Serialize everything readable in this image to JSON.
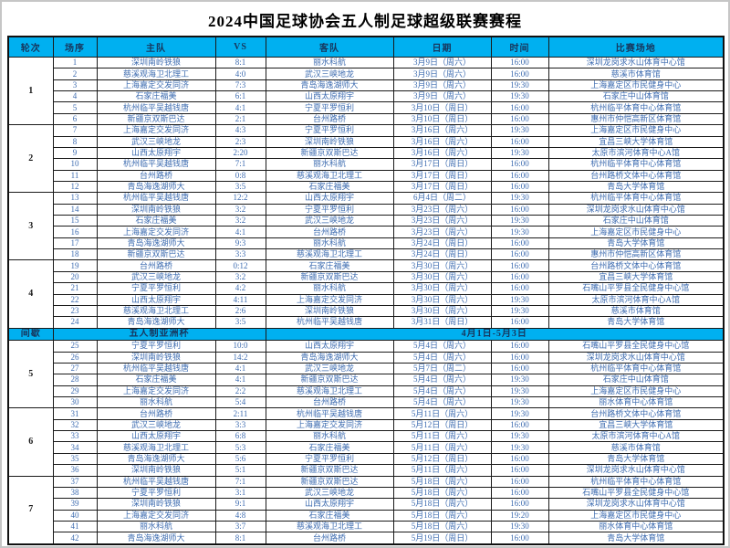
{
  "title": "2024中国足球协会五人制足球超级联赛赛程",
  "colors": {
    "header_bg": "#00b0f0",
    "header_text": "#17365d",
    "body_text": "#3e6cb0",
    "border": "#1a1a1a"
  },
  "table": {
    "headers": [
      "轮次",
      "场序",
      "主队",
      "VS",
      "客队",
      "日期",
      "时间",
      "比赛场地"
    ],
    "sections": [
      {
        "type": "round",
        "round": "1",
        "matches": [
          {
            "no": "1",
            "home": "深圳南岭铁狼",
            "score": "8:1",
            "away": "丽水科航",
            "date": "3月9日（周六）",
            "time": "16:00",
            "venue": "深圳龙岗求水山体育中心馆"
          },
          {
            "no": "2",
            "home": "慈溪观海卫北理工",
            "score": "4:0",
            "away": "武汉三峡地龙",
            "date": "3月9日（周六）",
            "time": "16:00",
            "venue": "慈溪市体育馆"
          },
          {
            "no": "3",
            "home": "上海嘉定交发同济",
            "score": "7:3",
            "away": "青岛海逸湖师大",
            "date": "3月9日（周六）",
            "time": "19:30",
            "venue": "上海嘉定区市民健身中心"
          },
          {
            "no": "4",
            "home": "石家庄福美",
            "score": "6:1",
            "away": "山西太原翔宇",
            "date": "3月9日（周六）",
            "time": "19:30",
            "venue": "石家庄中山体育馆"
          },
          {
            "no": "5",
            "home": "杭州临平吴越钱唐",
            "score": "4:1",
            "away": "宁夏平罗恒利",
            "date": "3月10日（周日）",
            "time": "16:00",
            "venue": "杭州临平体育中心体育馆"
          },
          {
            "no": "6",
            "home": "新疆京双斯巴达",
            "score": "2:1",
            "away": "台州路桥",
            "date": "3月10日（周日）",
            "time": "16:00",
            "venue": "惠州市仲恺高新区体育馆"
          }
        ]
      },
      {
        "type": "round",
        "round": "2",
        "matches": [
          {
            "no": "7",
            "home": "上海嘉定交发同济",
            "score": "4:3",
            "away": "宁夏平罗恒利",
            "date": "3月16日（周六）",
            "time": "19:30",
            "venue": "上海嘉定区市民健身中心"
          },
          {
            "no": "8",
            "home": "武汉三峡地龙",
            "score": "2:3",
            "away": "深圳南岭铁狼",
            "date": "3月16日（周六）",
            "time": "16:00",
            "venue": "宜昌三峡大学体育馆"
          },
          {
            "no": "9",
            "home": "山西太原翔宇",
            "score": "2:20",
            "away": "新疆京双斯巴达",
            "date": "3月16日（周六）",
            "time": "19:30",
            "venue": "太原市滨河体育中心A馆"
          },
          {
            "no": "10",
            "home": "杭州临平吴越钱唐",
            "score": "7:1",
            "away": "丽水科航",
            "date": "3月17日（周日）",
            "time": "16:00",
            "venue": "杭州临平体育中心体育馆"
          },
          {
            "no": "11",
            "home": "台州路桥",
            "score": "0:8",
            "away": "慈溪观海卫北理工",
            "date": "3月17日（周日）",
            "time": "16:00",
            "venue": "台州路桥文体中心体育馆"
          },
          {
            "no": "12",
            "home": "青岛海逸湖师大",
            "score": "3:5",
            "away": "石家庄福美",
            "date": "3月17日（周日）",
            "time": "16:00",
            "venue": "青岛大学体育馆"
          }
        ]
      },
      {
        "type": "round",
        "round": "3",
        "matches": [
          {
            "no": "13",
            "home": "杭州临平吴越钱唐",
            "score": "12:2",
            "away": "山西太原翔宇",
            "date": "6月4日（周二）",
            "time": "19:30",
            "venue": "杭州临平体育中心体育馆"
          },
          {
            "no": "14",
            "home": "深圳南岭铁狼",
            "score": "3:2",
            "away": "宁夏平罗恒利",
            "date": "3月23日（周六）",
            "time": "16:00",
            "venue": "深圳龙岗求水山体育中心馆"
          },
          {
            "no": "15",
            "home": "石家庄福美",
            "score": "3:2",
            "away": "武汉三峡地龙",
            "date": "3月23日（周六）",
            "time": "19:30",
            "venue": "石家庄中山体育馆"
          },
          {
            "no": "16",
            "home": "上海嘉定交发同济",
            "score": "4:1",
            "away": "台州路桥",
            "date": "3月23日（周六）",
            "time": "19:30",
            "venue": "上海嘉定区市民健身中心"
          },
          {
            "no": "17",
            "home": "青岛海逸湖师大",
            "score": "9:3",
            "away": "丽水科航",
            "date": "3月24日（周日）",
            "time": "16:00",
            "venue": "青岛大学体育馆"
          },
          {
            "no": "18",
            "home": "新疆京双斯巴达",
            "score": "3:3",
            "away": "慈溪观海卫北理工",
            "date": "3月24日（周日）",
            "time": "16:00",
            "venue": "惠州市仲恺高新区体育馆"
          }
        ]
      },
      {
        "type": "round",
        "round": "4",
        "matches": [
          {
            "no": "19",
            "home": "台州路桥",
            "score": "0:12",
            "away": "石家庄福美",
            "date": "3月30日（周六）",
            "time": "16:00",
            "venue": "台州路桥文体中心体育馆"
          },
          {
            "no": "20",
            "home": "武汉三峡地龙",
            "score": "3:2",
            "away": "新疆京双斯巴达",
            "date": "3月30日（周六）",
            "time": "16:00",
            "venue": "宜昌三峡大学体育馆"
          },
          {
            "no": "21",
            "home": "宁夏平罗恒利",
            "score": "4:2",
            "away": "丽水科航",
            "date": "3月30日（周六）",
            "time": "16:00",
            "venue": "石嘴山平罗县全民健身中心馆"
          },
          {
            "no": "22",
            "home": "山西太原翔宇",
            "score": "4:11",
            "away": "上海嘉定交发同济",
            "date": "3月30日（周六）",
            "time": "19:30",
            "venue": "太原市滨河体育中心A馆"
          },
          {
            "no": "23",
            "home": "慈溪观海卫北理工",
            "score": "2:6",
            "away": "深圳南岭铁狼",
            "date": "3月30日（周六）",
            "time": "19:30",
            "venue": "慈溪市体育馆"
          },
          {
            "no": "24",
            "home": "青岛海逸湖师大",
            "score": "3:5",
            "away": "杭州临平吴越钱唐",
            "date": "3月31日（周日）",
            "time": "16:00",
            "venue": "青岛大学体育馆"
          }
        ]
      },
      {
        "type": "break",
        "label": "间歇",
        "event": "五人制亚洲杯",
        "dates": "4月1日-5月3日"
      },
      {
        "type": "round",
        "round": "5",
        "matches": [
          {
            "no": "25",
            "home": "宁夏平罗恒利",
            "score": "10:0",
            "away": "山西太原翔宇",
            "date": "5月4日（周六）",
            "time": "16:00",
            "venue": "石嘴山平罗县全民健身中心馆"
          },
          {
            "no": "26",
            "home": "深圳南岭铁狼",
            "score": "14:2",
            "away": "青岛海逸湖师大",
            "date": "5月4日（周六）",
            "time": "16:00",
            "venue": "深圳龙岗求水山体育中心馆"
          },
          {
            "no": "27",
            "home": "杭州临平吴越钱唐",
            "score": "4:1",
            "away": "武汉三峡地龙",
            "date": "5月7日（周二）",
            "time": "16:00",
            "venue": "杭州临平体育中心体育馆"
          },
          {
            "no": "28",
            "home": "石家庄福美",
            "score": "4:1",
            "away": "新疆京双斯巴达",
            "date": "5月4日（周六）",
            "time": "19:30",
            "venue": "石家庄中山体育馆"
          },
          {
            "no": "29",
            "home": "上海嘉定交发同济",
            "score": "2:2",
            "away": "慈溪观海卫北理工",
            "date": "5月4日（周六）",
            "time": "19:30",
            "venue": "上海嘉定区市民健身中心"
          },
          {
            "no": "30",
            "home": "丽水科航",
            "score": "5:4",
            "away": "台州路桥",
            "date": "5月4日（周六）",
            "time": "19:30",
            "venue": "丽水体育中心体育馆"
          }
        ]
      },
      {
        "type": "round",
        "round": "6",
        "matches": [
          {
            "no": "31",
            "home": "台州路桥",
            "score": "2:11",
            "away": "杭州临平吴越钱唐",
            "date": "5月11日（周六）",
            "time": "19:30",
            "venue": "台州路桥文体中心体育馆"
          },
          {
            "no": "32",
            "home": "武汉三峡地龙",
            "score": "3:3",
            "away": "上海嘉定交发同济",
            "date": "5月12日（周日）",
            "time": "16:00",
            "venue": "宜昌三峡大学体育馆"
          },
          {
            "no": "33",
            "home": "山西太原翔宇",
            "score": "6:8",
            "away": "丽水科航",
            "date": "5月11日（周六）",
            "time": "19:30",
            "venue": "太原市滨河体育中心A馆"
          },
          {
            "no": "34",
            "home": "慈溪观海卫北理工",
            "score": "5:3",
            "away": "石家庄福美",
            "date": "5月11日（周六）",
            "time": "19:30",
            "venue": "慈溪市体育馆"
          },
          {
            "no": "35",
            "home": "青岛海逸湖师大",
            "score": "5:6",
            "away": "宁夏平罗恒利",
            "date": "5月12日（周日）",
            "time": "16:00",
            "venue": "青岛大学体育馆"
          },
          {
            "no": "36",
            "home": "深圳南岭铁狼",
            "score": "5:1",
            "away": "新疆京双斯巴达",
            "date": "5月11日（周六）",
            "time": "16:00",
            "venue": "深圳龙岗求水山体育中心馆"
          }
        ]
      },
      {
        "type": "round",
        "round": "7",
        "matches": [
          {
            "no": "37",
            "home": "杭州临平吴越钱唐",
            "score": "7:1",
            "away": "新疆京双斯巴达",
            "date": "5月18日（周六）",
            "time": "16:00",
            "venue": "杭州临平体育中心体育馆"
          },
          {
            "no": "38",
            "home": "宁夏平罗恒利",
            "score": "3:1",
            "away": "武汉三峡地龙",
            "date": "5月18日（周六）",
            "time": "16:00",
            "venue": "石嘴山平罗县全民健身中心馆"
          },
          {
            "no": "39",
            "home": "深圳南岭铁狼",
            "score": "9:1",
            "away": "山西太原翔宇",
            "date": "5月18日（周六）",
            "time": "16:00",
            "venue": "深圳龙岗求水山体育中心馆"
          },
          {
            "no": "40",
            "home": "上海嘉定交发同济",
            "score": "4:8",
            "away": "石家庄福美",
            "date": "5月18日（周六）",
            "time": "19:20",
            "venue": "上海嘉定区市民健身中心"
          },
          {
            "no": "41",
            "home": "丽水科航",
            "score": "3:7",
            "away": "慈溪观海卫北理工",
            "date": "5月18日（周六）",
            "time": "19:30",
            "venue": "丽水体育中心体育馆"
          },
          {
            "no": "42",
            "home": "青岛海逸湖师大",
            "score": "8:1",
            "away": "台州路桥",
            "date": "5月19日（周日）",
            "time": "16:00",
            "venue": "青岛大学体育馆"
          }
        ]
      }
    ]
  }
}
